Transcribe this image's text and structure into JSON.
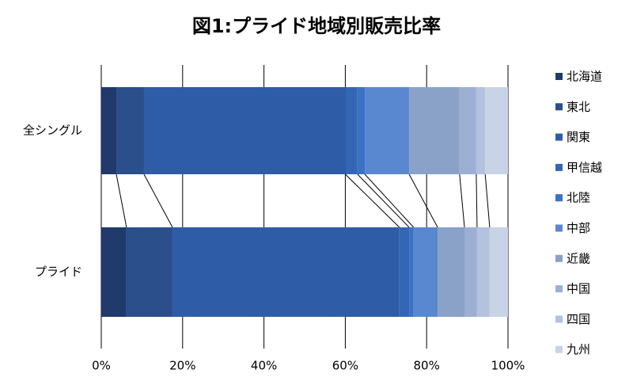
{
  "chart_data": {
    "type": "bar",
    "orientation": "horizontal",
    "stacked": true,
    "title": "図1:プライド地域別販売比率",
    "categories": [
      "全シングル",
      "プライド"
    ],
    "series": [
      {
        "name": "北海道",
        "color": "#1f3a6b",
        "values": [
          3.7,
          6.2
        ]
      },
      {
        "name": "東北",
        "color": "#2a4f8a",
        "values": [
          6.8,
          11.3
        ]
      },
      {
        "name": "関東",
        "color": "#2f5ca6",
        "values": [
          49.5,
          55.8
        ]
      },
      {
        "name": "甲信越",
        "color": "#3466b6",
        "values": [
          3.0,
          2.4
        ]
      },
      {
        "name": "北陸",
        "color": "#3b72c6",
        "values": [
          1.8,
          1.1
        ]
      },
      {
        "name": "中部",
        "color": "#5a88d0",
        "values": [
          10.9,
          5.9
        ]
      },
      {
        "name": "近畿",
        "color": "#8aa1c8",
        "values": [
          12.4,
          6.6
        ]
      },
      {
        "name": "中国",
        "color": "#9db0d3",
        "values": [
          4.1,
          3.1
        ]
      },
      {
        "name": "四国",
        "color": "#b3c2dd",
        "values": [
          2.2,
          3.1
        ]
      },
      {
        "name": "九州",
        "color": "#c9d3e7",
        "values": [
          5.6,
          4.5
        ]
      }
    ],
    "xlim": [
      0,
      100
    ],
    "xticks": [
      {
        "value": 0,
        "label": "0%"
      },
      {
        "value": 20,
        "label": "20%"
      },
      {
        "value": 40,
        "label": "40%"
      },
      {
        "value": 60,
        "label": "60%"
      },
      {
        "value": 80,
        "label": "80%"
      },
      {
        "value": 100,
        "label": "100%"
      }
    ],
    "grid": true,
    "legend": "right"
  }
}
